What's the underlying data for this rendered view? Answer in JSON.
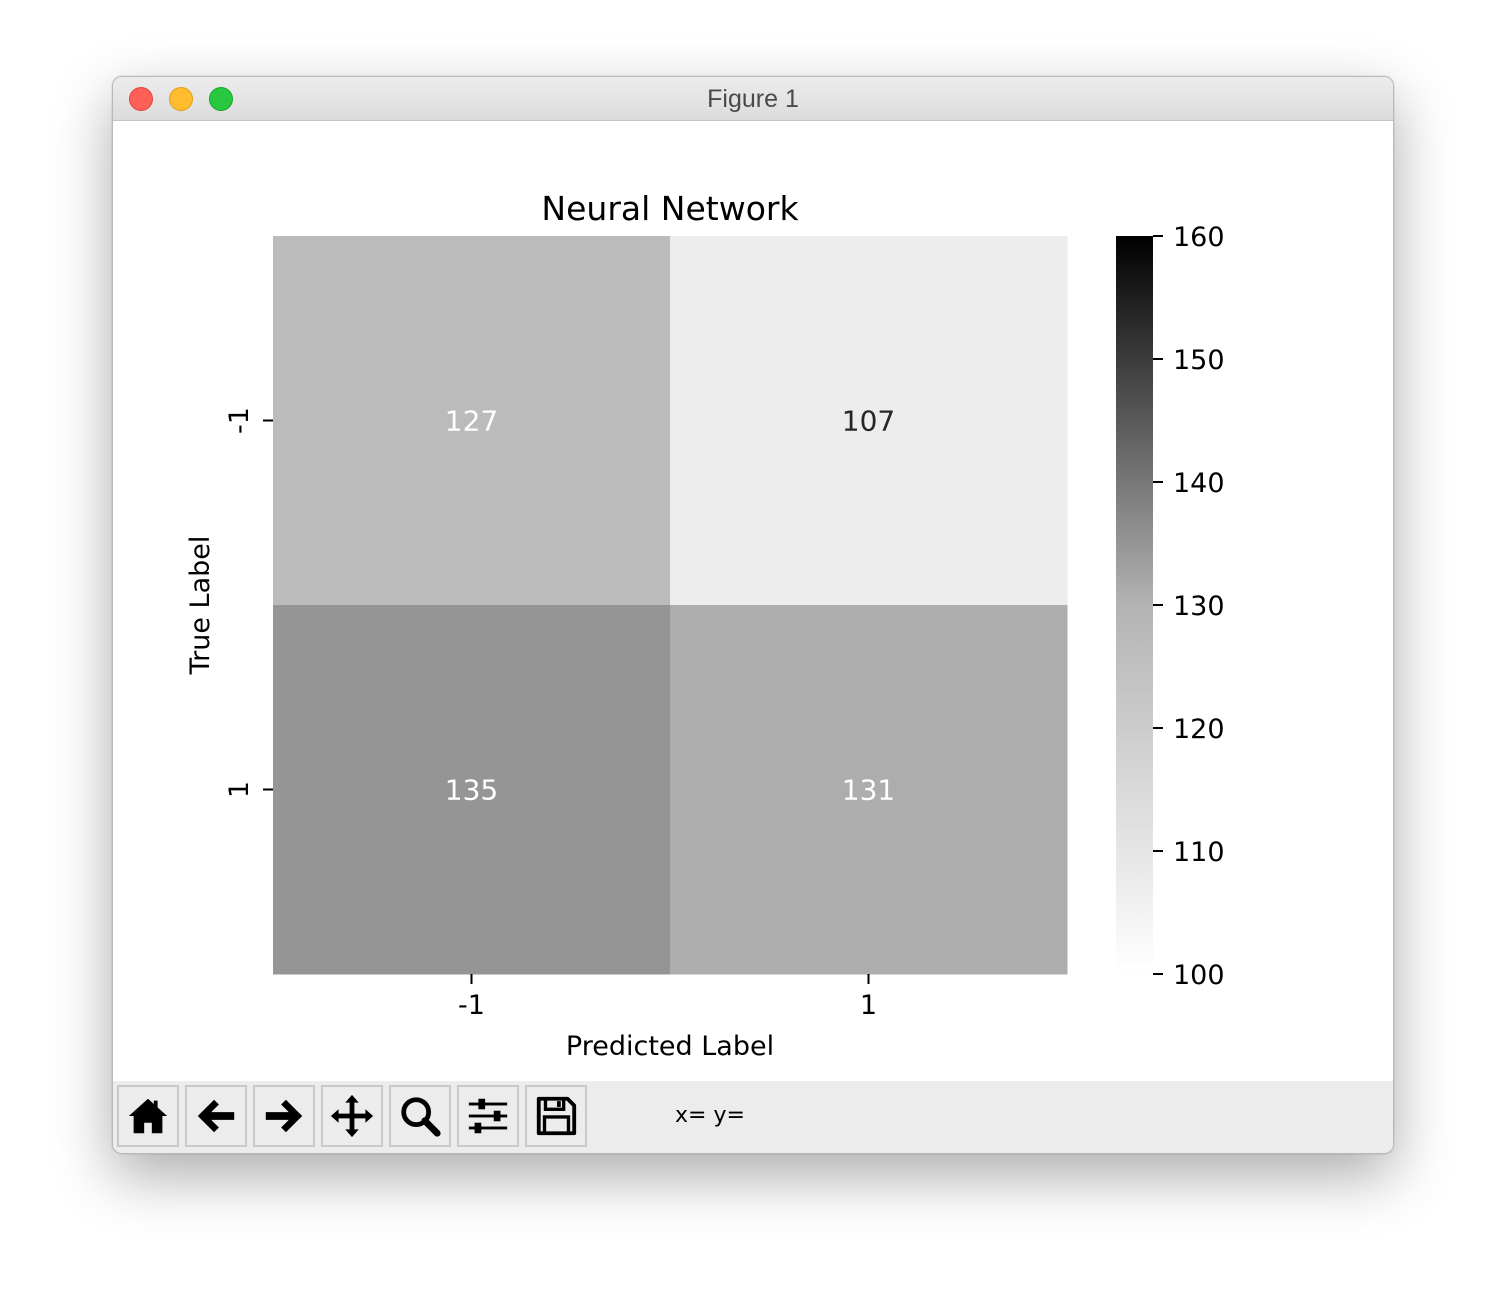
{
  "window": {
    "title": "Figure 1"
  },
  "toolbar": {
    "buttons": [
      {
        "icon": "home-icon"
      },
      {
        "icon": "back-arrow-icon"
      },
      {
        "icon": "forward-arrow-icon"
      },
      {
        "icon": "pan-icon"
      },
      {
        "icon": "zoom-icon"
      },
      {
        "icon": "subplots-config-icon"
      },
      {
        "icon": "save-icon"
      }
    ],
    "coords_text": "x= y="
  },
  "chart_data": {
    "type": "heatmap",
    "title": "Neural Network",
    "xlabel": "Predicted Label",
    "ylabel": "True Label",
    "x_categories": [
      "-1",
      "1"
    ],
    "y_categories": [
      "-1",
      "1"
    ],
    "values": [
      [
        127,
        107
      ],
      [
        135,
        131
      ]
    ],
    "colormap": "Greys",
    "colorbar": {
      "min": 100,
      "max": 160,
      "ticks": [
        "100",
        "110",
        "120",
        "130",
        "140",
        "150",
        "160"
      ]
    },
    "annotation_colors": {
      "light": "#ffffff",
      "dark": "#262626"
    }
  }
}
